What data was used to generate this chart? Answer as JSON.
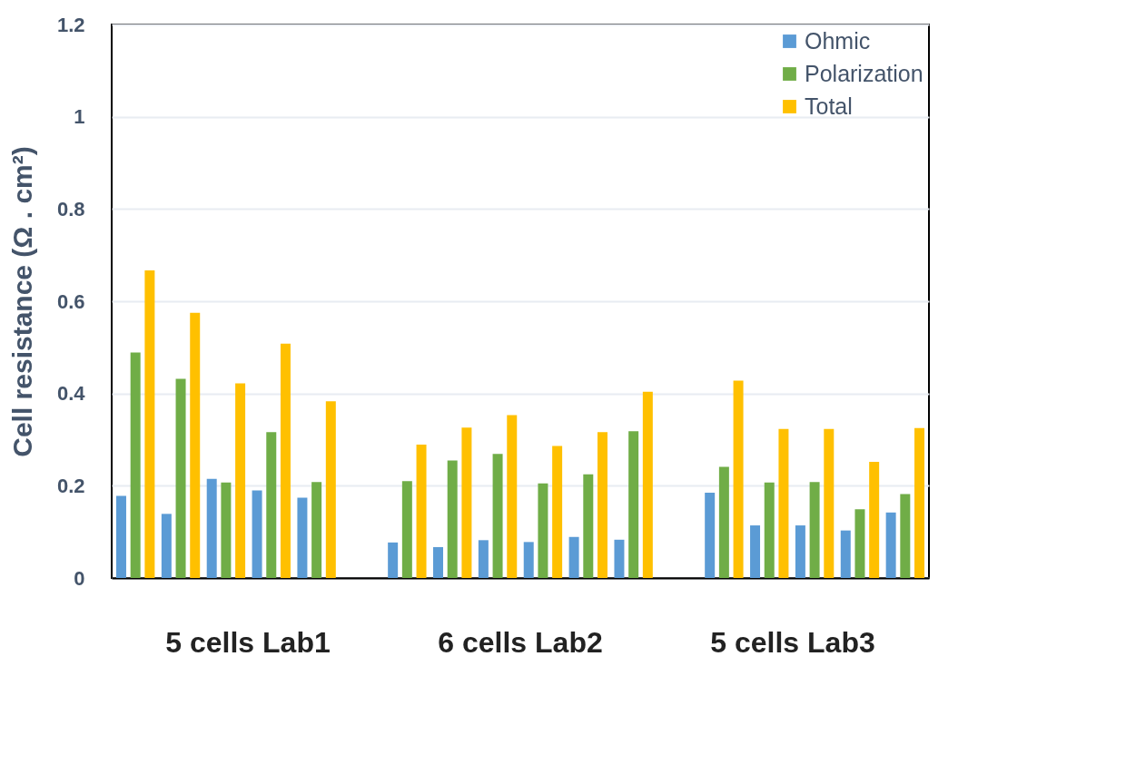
{
  "chart_data": {
    "type": "bar",
    "ylabel": "Cell resistance (Ω . cm²)",
    "categories": [
      null,
      null,
      null,
      null,
      null,
      null,
      null,
      null,
      null,
      null,
      null,
      null,
      null,
      null,
      null,
      null,
      null,
      null
    ],
    "series": [
      {
        "name": "Ohmic",
        "color": "#5b9bd5",
        "values": [
          0.178,
          0.139,
          0.215,
          0.19,
          0.174,
          null,
          0.077,
          0.067,
          0.082,
          0.078,
          0.089,
          0.083,
          null,
          0.185,
          0.114,
          0.114,
          0.103,
          0.142
        ]
      },
      {
        "name": "Polarization",
        "color": "#70ad47",
        "values": [
          0.489,
          0.432,
          0.207,
          0.316,
          0.208,
          null,
          0.21,
          0.255,
          0.269,
          0.205,
          0.225,
          0.318,
          null,
          0.241,
          0.207,
          0.208,
          0.149,
          0.182
        ]
      },
      {
        "name": "Total",
        "color": "#ffc000",
        "values": [
          0.667,
          0.575,
          0.422,
          0.508,
          0.383,
          null,
          0.289,
          0.326,
          0.353,
          0.286,
          0.316,
          0.404,
          null,
          0.428,
          0.323,
          0.323,
          0.252,
          0.325
        ]
      }
    ],
    "ylim": [
      0,
      1.2
    ],
    "yticks": [
      0,
      0.2,
      0.4,
      0.6,
      0.8,
      1,
      1.2
    ],
    "grid": "y",
    "legend": "top right",
    "tick_labels": "y",
    "annotations": [
      "5 cells Lab1",
      "6 cells Lab2",
      "5 cells Lab3"
    ]
  }
}
